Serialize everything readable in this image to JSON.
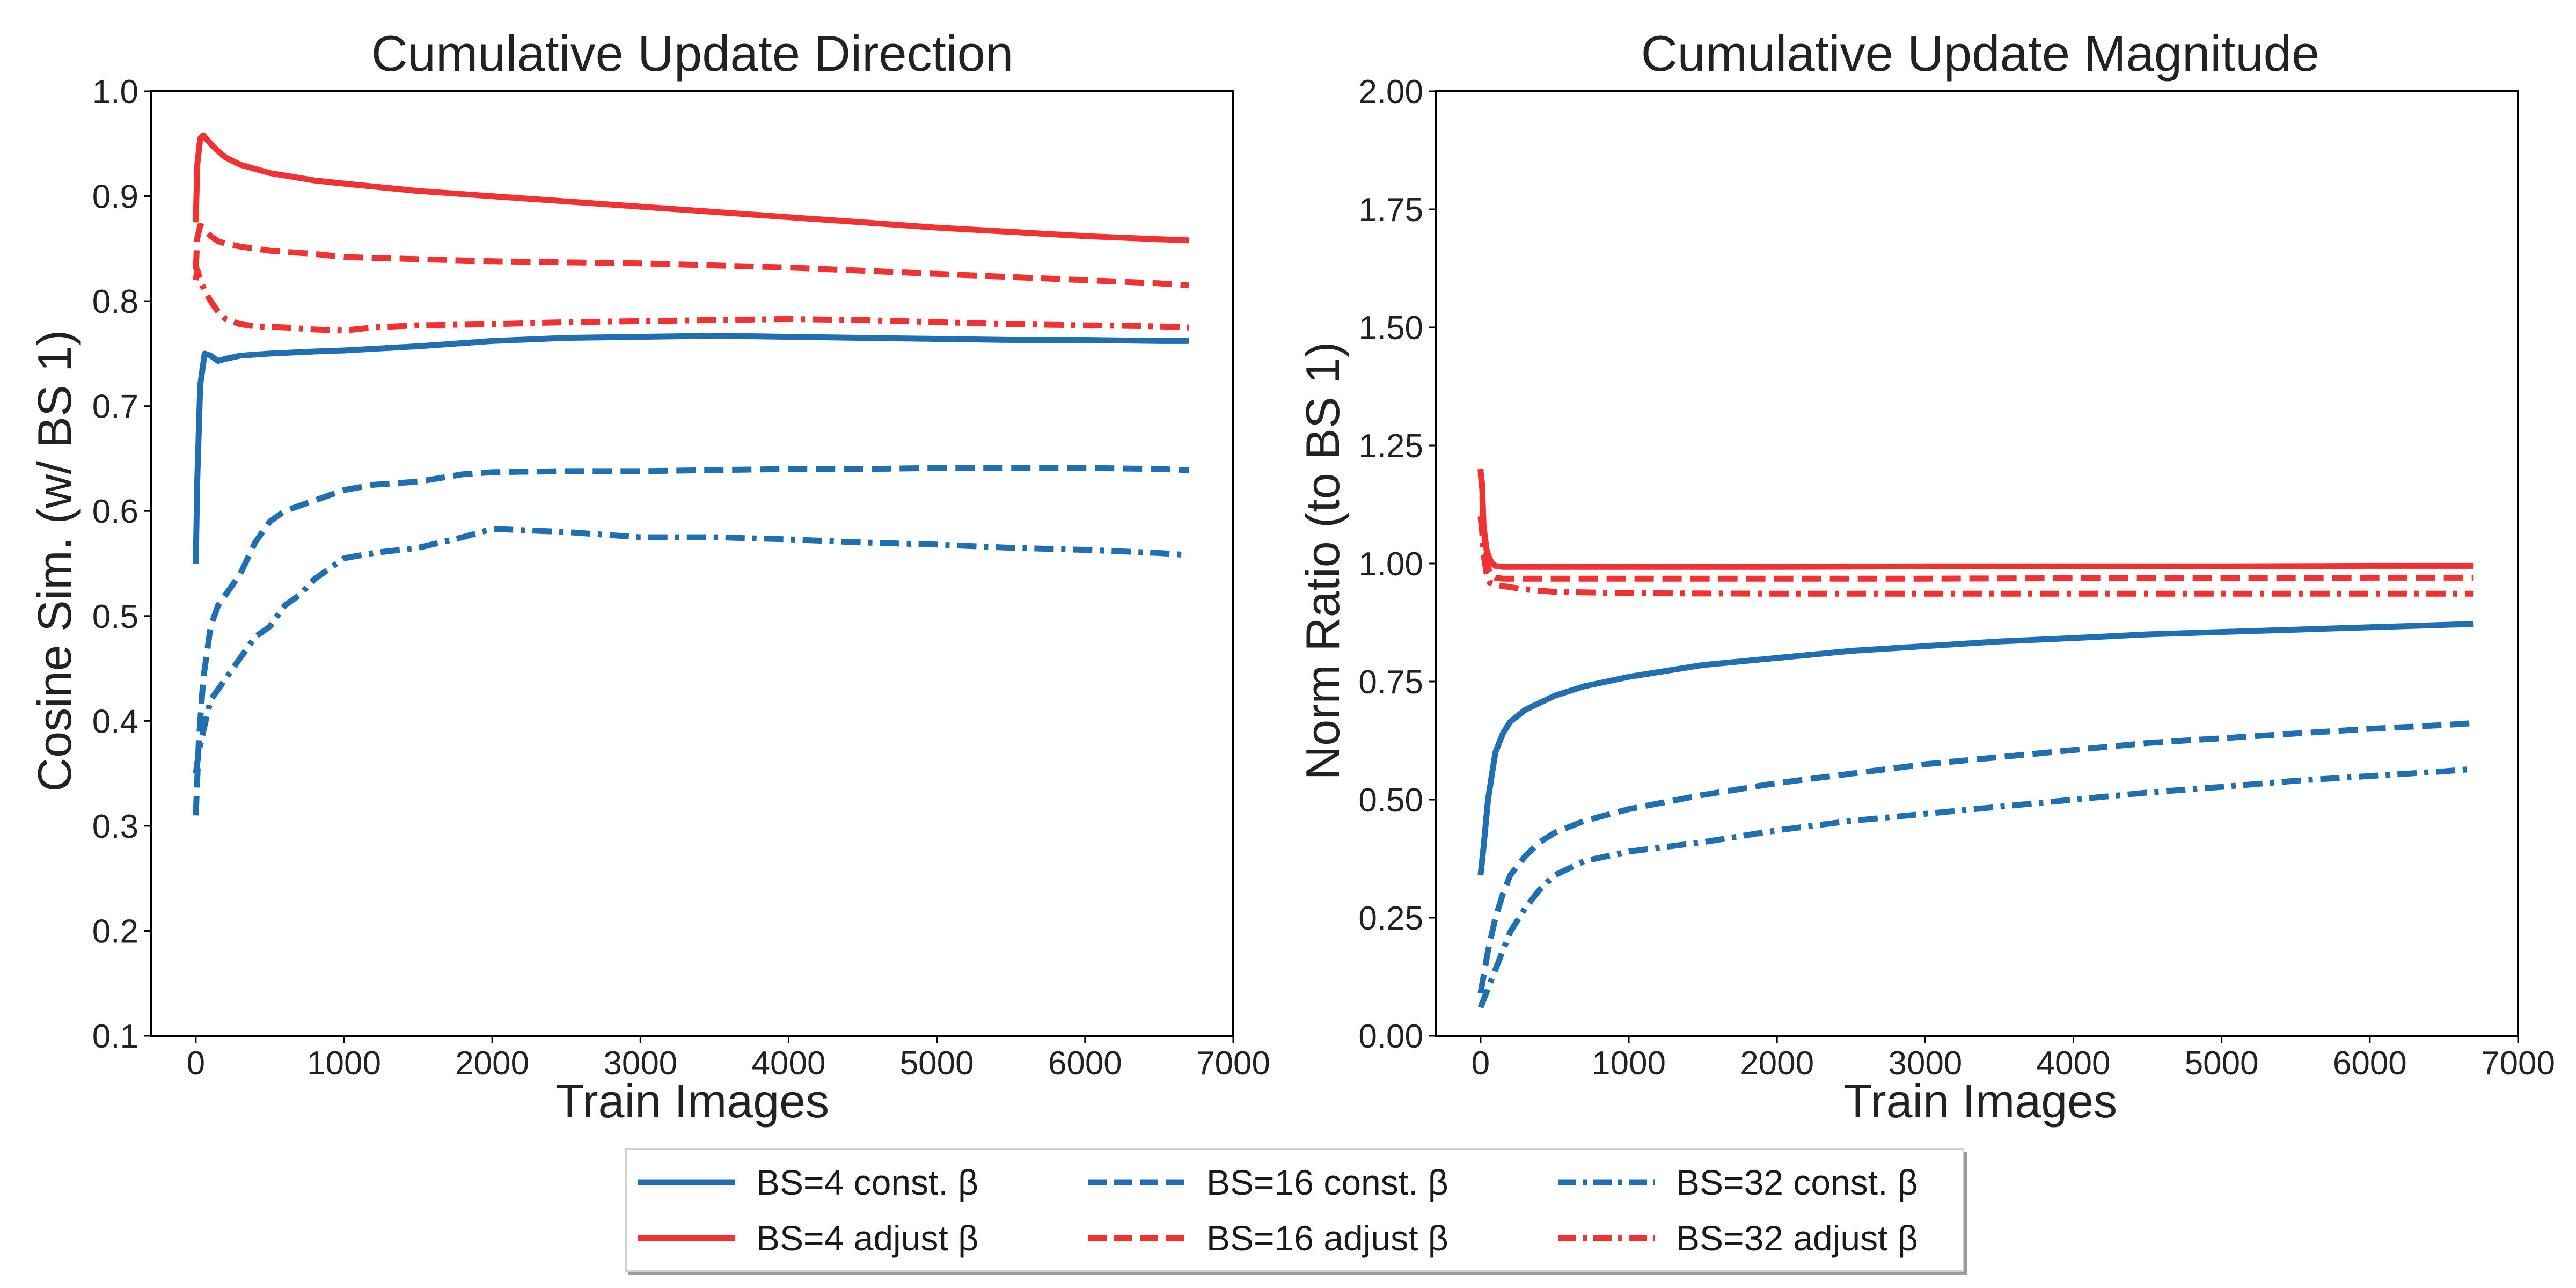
{
  "colors": {
    "const": "#1f6fb2",
    "adjust": "#f03232",
    "axis": "#000000",
    "text": "#222222"
  },
  "chart_data": [
    {
      "type": "line",
      "title": "Cumulative Update Direction",
      "xlabel": "Train Images",
      "ylabel": "Cosine Sim. (w/ BS 1)",
      "xlim": [
        -300,
        7000
      ],
      "ylim": [
        0.1,
        1.0
      ],
      "xticks": [
        0,
        1000,
        2000,
        3000,
        4000,
        5000,
        6000,
        7000
      ],
      "yticks": [
        0.1,
        0.2,
        0.3,
        0.4,
        0.5,
        0.6,
        0.7,
        0.8,
        0.9,
        1.0
      ],
      "ytick_labels": [
        "0.1",
        "0.2",
        "0.3",
        "0.4",
        "0.5",
        "0.6",
        "0.7",
        "0.8",
        "0.9",
        "1.0"
      ],
      "grid": false,
      "series": [
        {
          "name": "BS=4 const. β",
          "group": "const",
          "dash": "solid",
          "x": [
            0,
            10,
            30,
            60,
            100,
            150,
            200,
            300,
            500,
            800,
            1000,
            1500,
            2000,
            2500,
            3000,
            3500,
            4000,
            4500,
            5000,
            5500,
            6000,
            6500,
            6700
          ],
          "y": [
            0.55,
            0.63,
            0.72,
            0.75,
            0.748,
            0.743,
            0.745,
            0.748,
            0.75,
            0.752,
            0.753,
            0.757,
            0.762,
            0.765,
            0.766,
            0.767,
            0.766,
            0.765,
            0.764,
            0.763,
            0.763,
            0.762,
            0.762
          ]
        },
        {
          "name": "BS=16 const. β",
          "group": "const",
          "dash": "dashed",
          "x": [
            0,
            20,
            50,
            100,
            150,
            200,
            300,
            400,
            500,
            600,
            800,
            1000,
            1200,
            1500,
            1800,
            2000,
            2500,
            3000,
            3500,
            4000,
            4500,
            5000,
            5500,
            6000,
            6500,
            6700
          ],
          "y": [
            0.31,
            0.38,
            0.44,
            0.49,
            0.51,
            0.52,
            0.54,
            0.57,
            0.59,
            0.6,
            0.61,
            0.62,
            0.625,
            0.628,
            0.635,
            0.637,
            0.638,
            0.638,
            0.639,
            0.64,
            0.64,
            0.641,
            0.641,
            0.641,
            0.64,
            0.639
          ]
        },
        {
          "name": "BS=32 const. β",
          "group": "const",
          "dash": "dashdot",
          "x": [
            0,
            20,
            50,
            100,
            150,
            200,
            300,
            400,
            500,
            600,
            700,
            800,
            1000,
            1200,
            1500,
            1800,
            2000,
            2500,
            3000,
            3500,
            4000,
            4500,
            5000,
            5500,
            6000,
            6500,
            6700
          ],
          "y": [
            0.35,
            0.37,
            0.39,
            0.42,
            0.43,
            0.44,
            0.46,
            0.48,
            0.49,
            0.51,
            0.52,
            0.535,
            0.555,
            0.56,
            0.565,
            0.575,
            0.583,
            0.58,
            0.575,
            0.575,
            0.573,
            0.57,
            0.568,
            0.565,
            0.563,
            0.56,
            0.558
          ]
        },
        {
          "name": "BS=4 adjust β",
          "group": "adjust",
          "dash": "solid",
          "x": [
            0,
            10,
            30,
            50,
            100,
            150,
            200,
            300,
            500,
            800,
            1000,
            1500,
            2000,
            2500,
            3000,
            3500,
            4000,
            4500,
            5000,
            5500,
            6000,
            6500,
            6700
          ],
          "y": [
            0.875,
            0.93,
            0.955,
            0.958,
            0.95,
            0.943,
            0.937,
            0.93,
            0.922,
            0.915,
            0.912,
            0.905,
            0.9,
            0.895,
            0.89,
            0.885,
            0.88,
            0.875,
            0.87,
            0.866,
            0.862,
            0.859,
            0.858
          ]
        },
        {
          "name": "BS=16 adjust β",
          "group": "adjust",
          "dash": "dashed",
          "x": [
            0,
            10,
            30,
            50,
            100,
            150,
            200,
            300,
            500,
            800,
            1000,
            1500,
            2000,
            2500,
            3000,
            3500,
            4000,
            4500,
            5000,
            5500,
            6000,
            6500,
            6700
          ],
          "y": [
            0.83,
            0.86,
            0.872,
            0.87,
            0.862,
            0.857,
            0.855,
            0.852,
            0.848,
            0.845,
            0.842,
            0.84,
            0.838,
            0.837,
            0.836,
            0.834,
            0.832,
            0.829,
            0.826,
            0.823,
            0.82,
            0.817,
            0.815
          ]
        },
        {
          "name": "BS=32 adjust β",
          "group": "adjust",
          "dash": "dashdot",
          "x": [
            0,
            10,
            30,
            60,
            100,
            150,
            200,
            300,
            400,
            600,
            800,
            1000,
            1200,
            1500,
            2000,
            2500,
            3000,
            3500,
            4000,
            4500,
            5000,
            5500,
            6000,
            6500,
            6700
          ],
          "y": [
            0.82,
            0.83,
            0.82,
            0.81,
            0.8,
            0.79,
            0.783,
            0.778,
            0.776,
            0.775,
            0.773,
            0.772,
            0.775,
            0.777,
            0.778,
            0.78,
            0.781,
            0.782,
            0.783,
            0.782,
            0.78,
            0.778,
            0.777,
            0.776,
            0.775
          ]
        }
      ]
    },
    {
      "type": "line",
      "title": "Cumulative Update Magnitude",
      "xlabel": "Train Images",
      "ylabel": "Norm Ratio (to BS 1)",
      "xlim": [
        -300,
        7000
      ],
      "ylim": [
        0.0,
        2.0
      ],
      "xticks": [
        0,
        1000,
        2000,
        3000,
        4000,
        5000,
        6000,
        7000
      ],
      "yticks": [
        0.0,
        0.25,
        0.5,
        0.75,
        1.0,
        1.25,
        1.5,
        1.75,
        2.0
      ],
      "ytick_labels": [
        "0.00",
        "0.25",
        "0.50",
        "0.75",
        "1.00",
        "1.25",
        "1.50",
        "1.75",
        "2.00"
      ],
      "grid": false,
      "series": [
        {
          "name": "BS=4 const. β",
          "group": "const",
          "dash": "solid",
          "x": [
            0,
            20,
            50,
            80,
            100,
            150,
            200,
            300,
            400,
            500,
            700,
            1000,
            1500,
            2000,
            2500,
            3000,
            3500,
            4000,
            4500,
            5000,
            5500,
            6000,
            6500,
            6700
          ],
          "y": [
            0.34,
            0.4,
            0.5,
            0.56,
            0.6,
            0.64,
            0.665,
            0.69,
            0.705,
            0.72,
            0.74,
            0.76,
            0.785,
            0.8,
            0.815,
            0.825,
            0.835,
            0.842,
            0.85,
            0.855,
            0.86,
            0.865,
            0.87,
            0.872
          ]
        },
        {
          "name": "BS=16 const. β",
          "group": "const",
          "dash": "dashed",
          "x": [
            0,
            50,
            100,
            150,
            200,
            300,
            400,
            500,
            700,
            1000,
            1500,
            2000,
            2500,
            3000,
            3500,
            4000,
            4500,
            5000,
            5500,
            6000,
            6500,
            6700
          ],
          "y": [
            0.09,
            0.18,
            0.25,
            0.3,
            0.34,
            0.38,
            0.41,
            0.43,
            0.455,
            0.48,
            0.51,
            0.535,
            0.555,
            0.575,
            0.59,
            0.605,
            0.62,
            0.63,
            0.64,
            0.65,
            0.658,
            0.662
          ]
        },
        {
          "name": "BS=32 const. β",
          "group": "const",
          "dash": "dashdot",
          "x": [
            0,
            50,
            100,
            150,
            200,
            300,
            400,
            500,
            700,
            1000,
            1500,
            2000,
            2500,
            3000,
            3500,
            4000,
            4500,
            5000,
            5500,
            6000,
            6500,
            6700
          ],
          "y": [
            0.06,
            0.1,
            0.14,
            0.18,
            0.22,
            0.27,
            0.31,
            0.34,
            0.37,
            0.39,
            0.41,
            0.435,
            0.455,
            0.47,
            0.485,
            0.5,
            0.515,
            0.527,
            0.54,
            0.55,
            0.56,
            0.565
          ]
        },
        {
          "name": "BS=4 adjust β",
          "group": "adjust",
          "dash": "solid",
          "x": [
            0,
            10,
            20,
            40,
            60,
            80,
            100,
            150,
            200,
            500,
            1000,
            2000,
            3000,
            4000,
            5000,
            6000,
            6700
          ],
          "y": [
            1.19,
            1.17,
            1.08,
            1.03,
            1.01,
            1.0,
            0.995,
            0.993,
            0.993,
            0.993,
            0.993,
            0.993,
            0.994,
            0.994,
            0.994,
            0.995,
            0.995
          ]
        },
        {
          "name": "BS=16 adjust β",
          "group": "adjust",
          "dash": "dashed",
          "x": [
            0,
            10,
            20,
            40,
            60,
            100,
            150,
            200,
            300,
            500,
            1000,
            2000,
            3000,
            4000,
            5000,
            6000,
            6700
          ],
          "y": [
            1.2,
            1.15,
            1.08,
            1.01,
            0.98,
            0.97,
            0.968,
            0.968,
            0.968,
            0.968,
            0.968,
            0.968,
            0.968,
            0.969,
            0.969,
            0.97,
            0.97
          ]
        },
        {
          "name": "BS=32 adjust β",
          "group": "adjust",
          "dash": "dashdot",
          "x": [
            0,
            10,
            20,
            40,
            60,
            100,
            150,
            200,
            300,
            500,
            1000,
            2000,
            3000,
            4000,
            5000,
            6000,
            6700
          ],
          "y": [
            1.1,
            1.07,
            1.02,
            0.98,
            0.96,
            0.955,
            0.952,
            0.95,
            0.945,
            0.94,
            0.937,
            0.936,
            0.936,
            0.936,
            0.936,
            0.936,
            0.936
          ]
        }
      ]
    }
  ],
  "legend": {
    "placement": "bottom-center",
    "items": [
      {
        "label": "BS=4 const. β",
        "group": "const",
        "dash": "solid"
      },
      {
        "label": "BS=16 const. β",
        "group": "const",
        "dash": "dashed"
      },
      {
        "label": "BS=32 const. β",
        "group": "const",
        "dash": "dashdot"
      },
      {
        "label": "BS=4 adjust β",
        "group": "adjust",
        "dash": "solid"
      },
      {
        "label": "BS=16 adjust β",
        "group": "adjust",
        "dash": "dashed"
      },
      {
        "label": "BS=32 adjust β",
        "group": "adjust",
        "dash": "dashdot"
      }
    ]
  }
}
